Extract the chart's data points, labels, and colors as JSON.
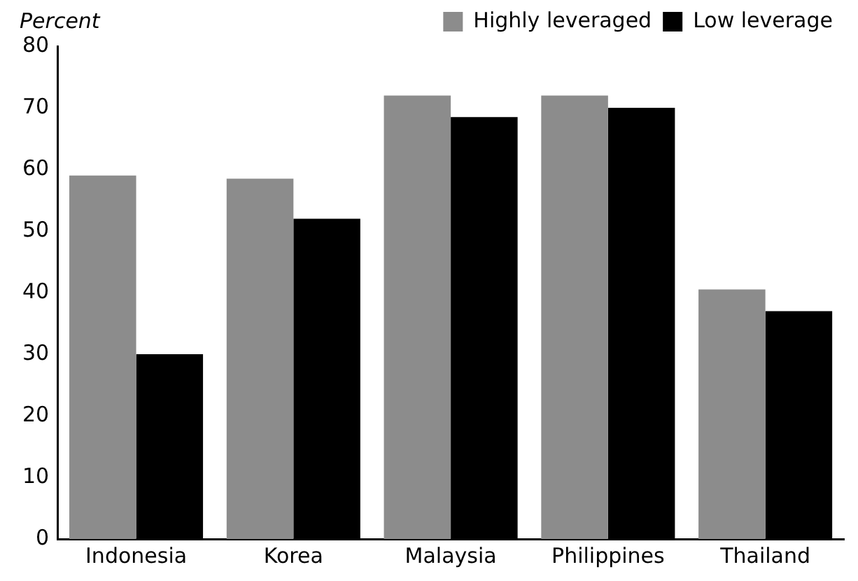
{
  "chart_data": {
    "type": "bar",
    "ylabel": "Percent",
    "categories": [
      "Indonesia",
      "Korea",
      "Malaysia",
      "Philippines",
      "Thailand"
    ],
    "series": [
      {
        "name": "Highly leveraged",
        "color": "#8c8c8c",
        "values": [
          59,
          58.5,
          72,
          72,
          40.5
        ]
      },
      {
        "name": "Low leverage",
        "color": "#000000",
        "values": [
          30,
          52,
          68.5,
          70,
          37
        ]
      }
    ],
    "ylim": [
      0,
      80
    ],
    "yticks": [
      0,
      10,
      20,
      30,
      40,
      50,
      60,
      70,
      80
    ],
    "grid": false,
    "legend": "top right"
  }
}
